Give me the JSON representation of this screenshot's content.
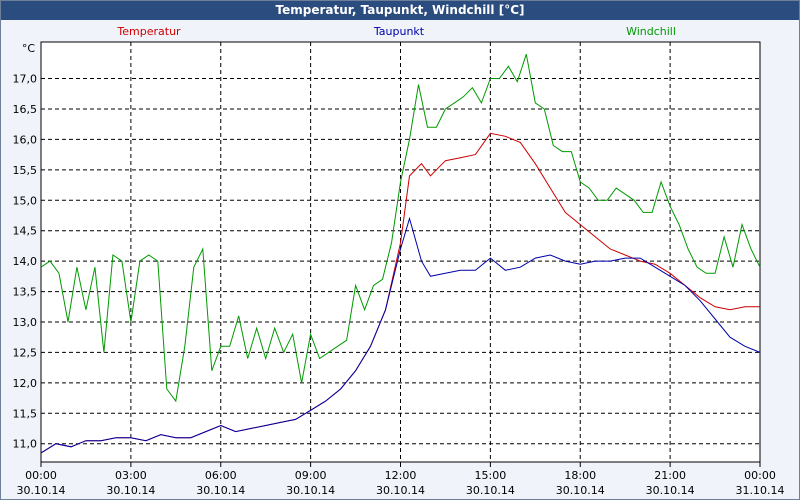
{
  "window": {
    "title": "Temperatur, Taupunkt, Windchill [°C]"
  },
  "colors": {
    "temperatur": "#cc0000",
    "taupunkt": "#0000aa",
    "windchill": "#009900",
    "grid": "#000000",
    "titlebar": "#2b4c7e"
  },
  "chart_data": {
    "type": "line",
    "title": "Temperatur, Taupunkt, Windchill [°C]",
    "ylabel": "°C",
    "ylim": [
      10.7,
      17.6
    ],
    "yticks": [
      "11,0",
      "11,5",
      "12,0",
      "12,5",
      "13,0",
      "13,5",
      "14,0",
      "14,5",
      "15,0",
      "15,5",
      "16,0",
      "16,5",
      "17,0"
    ],
    "ytick_values": [
      11.0,
      11.5,
      12.0,
      12.5,
      13.0,
      13.5,
      14.0,
      14.5,
      15.0,
      15.5,
      16.0,
      16.5,
      17.0
    ],
    "xlim": [
      0,
      24
    ],
    "xticks": [
      {
        "time": "00:00",
        "date": "30.10.14"
      },
      {
        "time": "03:00",
        "date": "30.10.14"
      },
      {
        "time": "06:00",
        "date": "30.10.14"
      },
      {
        "time": "09:00",
        "date": "30.10.14"
      },
      {
        "time": "12:00",
        "date": "30.10.14"
      },
      {
        "time": "15:00",
        "date": "30.10.14"
      },
      {
        "time": "18:00",
        "date": "30.10.14"
      },
      {
        "time": "21:00",
        "date": "30.10.14"
      },
      {
        "time": "00:00",
        "date": "31.10.14"
      }
    ],
    "grid": true,
    "legend": "top",
    "series": [
      {
        "name": "Temperatur",
        "x": [
          0,
          0.5,
          1,
          1.5,
          2,
          2.5,
          3,
          3.5,
          4,
          4.5,
          5,
          5.5,
          6,
          6.5,
          7,
          7.5,
          8,
          8.5,
          9,
          9.5,
          10,
          10.5,
          11,
          11.5,
          12,
          12.3,
          12.7,
          13,
          13.5,
          14,
          14.5,
          15,
          15.5,
          16,
          16.5,
          17,
          17.5,
          18,
          18.5,
          19,
          19.5,
          20,
          20.5,
          21,
          21.5,
          22,
          22.5,
          23,
          23.5,
          24
        ],
        "values": [
          10.85,
          11.0,
          10.95,
          11.05,
          11.05,
          11.1,
          11.1,
          11.05,
          11.15,
          11.1,
          11.1,
          11.2,
          11.3,
          11.2,
          11.25,
          11.3,
          11.35,
          11.4,
          11.55,
          11.7,
          11.9,
          12.2,
          12.6,
          13.2,
          14.3,
          15.4,
          15.6,
          15.4,
          15.65,
          15.7,
          15.75,
          16.1,
          16.05,
          15.95,
          15.6,
          15.2,
          14.8,
          14.6,
          14.4,
          14.2,
          14.1,
          14.0,
          13.95,
          13.8,
          13.6,
          13.4,
          13.25,
          13.2,
          13.25,
          13.25
        ]
      },
      {
        "name": "Taupunkt",
        "x": [
          0,
          0.5,
          1,
          1.5,
          2,
          2.5,
          3,
          3.5,
          4,
          4.5,
          5,
          5.5,
          6,
          6.5,
          7,
          7.5,
          8,
          8.5,
          9,
          9.5,
          10,
          10.5,
          11,
          11.5,
          12,
          12.3,
          12.7,
          13,
          13.5,
          14,
          14.5,
          15,
          15.5,
          16,
          16.5,
          17,
          17.5,
          18,
          18.5,
          19,
          19.5,
          20,
          20.5,
          21,
          21.5,
          22,
          22.5,
          23,
          23.5,
          24
        ],
        "values": [
          10.85,
          11.0,
          10.95,
          11.05,
          11.05,
          11.1,
          11.1,
          11.05,
          11.15,
          11.1,
          11.1,
          11.2,
          11.3,
          11.2,
          11.25,
          11.3,
          11.35,
          11.4,
          11.55,
          11.7,
          11.9,
          12.2,
          12.6,
          13.2,
          14.2,
          14.7,
          14.0,
          13.75,
          13.8,
          13.85,
          13.85,
          14.05,
          13.85,
          13.9,
          14.05,
          14.1,
          14.0,
          13.95,
          14.0,
          14.0,
          14.05,
          14.05,
          13.9,
          13.75,
          13.6,
          13.35,
          13.05,
          12.75,
          12.6,
          12.5
        ]
      },
      {
        "name": "Windchill",
        "x": [
          0,
          0.3,
          0.6,
          0.9,
          1.2,
          1.5,
          1.8,
          2.1,
          2.4,
          2.7,
          3.0,
          3.3,
          3.6,
          3.9,
          4.2,
          4.5,
          4.8,
          5.1,
          5.4,
          5.7,
          6.0,
          6.3,
          6.6,
          6.9,
          7.2,
          7.5,
          7.8,
          8.1,
          8.4,
          8.7,
          9.0,
          9.3,
          9.6,
          9.9,
          10.2,
          10.5,
          10.8,
          11.1,
          11.4,
          11.7,
          12.0,
          12.3,
          12.6,
          12.9,
          13.2,
          13.5,
          13.8,
          14.1,
          14.4,
          14.7,
          15.0,
          15.3,
          15.6,
          15.9,
          16.2,
          16.5,
          16.8,
          17.1,
          17.4,
          17.7,
          18.0,
          18.3,
          18.6,
          18.9,
          19.2,
          19.5,
          19.8,
          20.1,
          20.4,
          20.7,
          21.0,
          21.3,
          21.6,
          21.9,
          22.2,
          22.5,
          22.8,
          23.1,
          23.4,
          23.7,
          24.0
        ],
        "values": [
          13.9,
          14.0,
          13.8,
          13.0,
          13.9,
          13.2,
          13.9,
          12.5,
          14.1,
          14.0,
          13.0,
          14.0,
          14.1,
          14.0,
          11.9,
          11.7,
          12.6,
          13.9,
          14.2,
          12.2,
          12.6,
          12.6,
          13.1,
          12.4,
          12.9,
          12.4,
          12.9,
          12.5,
          12.8,
          12.0,
          12.8,
          12.4,
          12.5,
          12.6,
          12.7,
          13.6,
          13.2,
          13.6,
          13.7,
          14.3,
          15.3,
          16.0,
          16.9,
          16.2,
          16.2,
          16.5,
          16.6,
          16.7,
          16.85,
          16.6,
          17.0,
          17.0,
          17.2,
          16.95,
          17.4,
          16.6,
          16.5,
          15.9,
          15.8,
          15.8,
          15.3,
          15.2,
          15.0,
          15.0,
          15.2,
          15.1,
          15.0,
          14.8,
          14.8,
          15.3,
          14.9,
          14.6,
          14.2,
          13.9,
          13.8,
          13.8,
          14.4,
          13.9,
          14.6,
          14.2,
          13.9
        ]
      }
    ]
  }
}
